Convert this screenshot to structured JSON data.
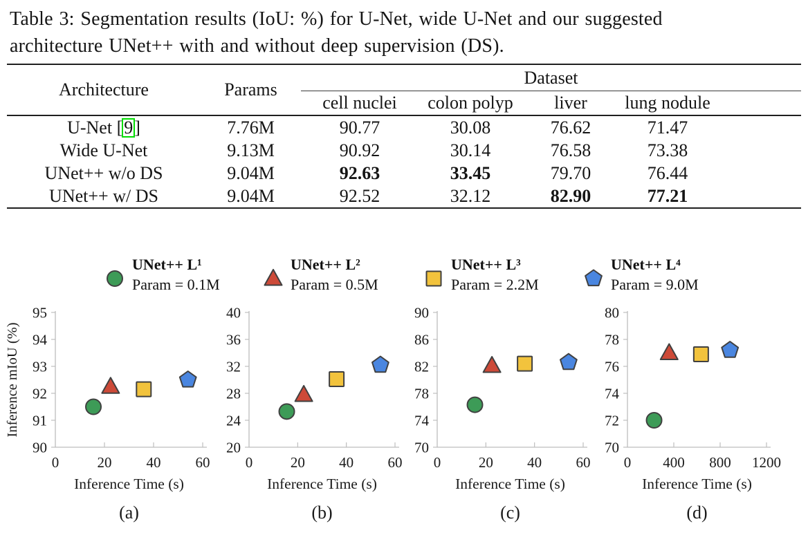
{
  "caption": {
    "line1": "Table 3: Segmentation results (IoU: %) for U-Net, wide U-Net and our suggested",
    "line2": "architecture UNet++ with and without deep supervision (DS)."
  },
  "table": {
    "col_headers": {
      "architecture": "Architecture",
      "params": "Params",
      "dataset_group": "Dataset",
      "datasets": [
        "cell nuclei",
        "colon polyp",
        "liver",
        "lung nodule"
      ]
    },
    "rows": [
      {
        "architecture": "U-Net",
        "citation": "9",
        "params": "7.76M",
        "values": [
          {
            "v": "90.77"
          },
          {
            "v": "30.08"
          },
          {
            "v": "76.62"
          },
          {
            "v": "71.47"
          }
        ]
      },
      {
        "architecture": "Wide U-Net",
        "params": "9.13M",
        "values": [
          {
            "v": "90.92"
          },
          {
            "v": "30.14"
          },
          {
            "v": "76.58"
          },
          {
            "v": "73.38"
          }
        ]
      },
      {
        "architecture": "UNet++ w/o DS",
        "params": "9.04M",
        "values": [
          {
            "v": "92.63",
            "bold": true
          },
          {
            "v": "33.45",
            "bold": true
          },
          {
            "v": "79.70"
          },
          {
            "v": "76.44"
          }
        ]
      },
      {
        "architecture": "UNet++ w/ DS",
        "params": "9.04M",
        "values": [
          {
            "v": "92.52"
          },
          {
            "v": "32.12"
          },
          {
            "v": "82.90",
            "bold": true
          },
          {
            "v": "77.21",
            "bold": true
          }
        ]
      }
    ],
    "citation_box_color": "#00dd00"
  },
  "legend": {
    "entries": [
      {
        "name": "UNet++ L¹",
        "param": "Param = 0.1M",
        "marker": "circle",
        "fill": "#3d9b57"
      },
      {
        "name": "UNet++ L²",
        "param": "Param = 0.5M",
        "marker": "triangle",
        "fill": "#cd4a38"
      },
      {
        "name": "UNet++ L³",
        "param": "Param = 2.2M",
        "marker": "square",
        "fill": "#f2c33d"
      },
      {
        "name": "UNet++ L⁴",
        "param": "Param = 9.0M",
        "marker": "pentagon",
        "fill": "#4a86e0"
      }
    ]
  },
  "colors": {
    "marker_stroke": "#404040",
    "axis": "#bdbdbd",
    "text": "#1a1a1a"
  },
  "chart_data": [
    {
      "type": "scatter",
      "id": "a",
      "caption": "(a)",
      "xlabel": "Inference Time (s)",
      "ylabel": "Inference mIoU (%)",
      "xlim": [
        0,
        60
      ],
      "xticks": [
        0,
        20,
        40,
        60
      ],
      "ylim": [
        90,
        95
      ],
      "yticks": [
        90,
        91,
        92,
        93,
        94,
        95
      ],
      "grid": false,
      "legend_position": "top",
      "points": [
        {
          "series": "UNet++ L¹",
          "marker": "circle",
          "x": 15.5,
          "y": 91.5
        },
        {
          "series": "UNet++ L²",
          "marker": "triangle",
          "x": 22.5,
          "y": 92.25
        },
        {
          "series": "UNet++ L³",
          "marker": "square",
          "x": 36,
          "y": 92.15
        },
        {
          "series": "UNet++ L⁴",
          "marker": "pentagon",
          "x": 54,
          "y": 92.5
        }
      ]
    },
    {
      "type": "scatter",
      "id": "b",
      "caption": "(b)",
      "xlabel": "Inference Time (s)",
      "ylabel": "",
      "xlim": [
        0,
        60
      ],
      "xticks": [
        0,
        20,
        40,
        60
      ],
      "ylim": [
        20,
        40
      ],
      "yticks": [
        20,
        24,
        28,
        32,
        36,
        40
      ],
      "grid": false,
      "points": [
        {
          "series": "UNet++ L¹",
          "marker": "circle",
          "x": 15.5,
          "y": 25.3
        },
        {
          "series": "UNet++ L²",
          "marker": "triangle",
          "x": 22.5,
          "y": 27.8
        },
        {
          "series": "UNet++ L³",
          "marker": "square",
          "x": 36,
          "y": 30.1
        },
        {
          "series": "UNet++ L⁴",
          "marker": "pentagon",
          "x": 54,
          "y": 32.2
        }
      ]
    },
    {
      "type": "scatter",
      "id": "c",
      "caption": "(c)",
      "xlabel": "Inference Time (s)",
      "ylabel": "",
      "xlim": [
        0,
        60
      ],
      "xticks": [
        0,
        20,
        40,
        60
      ],
      "ylim": [
        70,
        90
      ],
      "yticks": [
        70,
        74,
        78,
        82,
        86,
        90
      ],
      "grid": false,
      "points": [
        {
          "series": "UNet++ L¹",
          "marker": "circle",
          "x": 15.5,
          "y": 76.3
        },
        {
          "series": "UNet++ L²",
          "marker": "triangle",
          "x": 22.5,
          "y": 82.1
        },
        {
          "series": "UNet++ L³",
          "marker": "square",
          "x": 36,
          "y": 82.4
        },
        {
          "series": "UNet++ L⁴",
          "marker": "pentagon",
          "x": 54,
          "y": 82.6
        }
      ]
    },
    {
      "type": "scatter",
      "id": "d",
      "caption": "(d)",
      "xlabel": "Inference Time (s)",
      "ylabel": "",
      "xlim": [
        0,
        1200
      ],
      "xticks": [
        0,
        400,
        800,
        1200
      ],
      "ylim": [
        70,
        80
      ],
      "yticks": [
        70,
        72,
        74,
        76,
        78,
        80
      ],
      "grid": false,
      "points": [
        {
          "series": "UNet++ L¹",
          "marker": "circle",
          "x": 230,
          "y": 72.0
        },
        {
          "series": "UNet++ L²",
          "marker": "triangle",
          "x": 360,
          "y": 77.0
        },
        {
          "series": "UNet++ L³",
          "marker": "square",
          "x": 635,
          "y": 76.9
        },
        {
          "series": "UNet++ L⁴",
          "marker": "pentagon",
          "x": 885,
          "y": 77.2
        }
      ]
    }
  ]
}
